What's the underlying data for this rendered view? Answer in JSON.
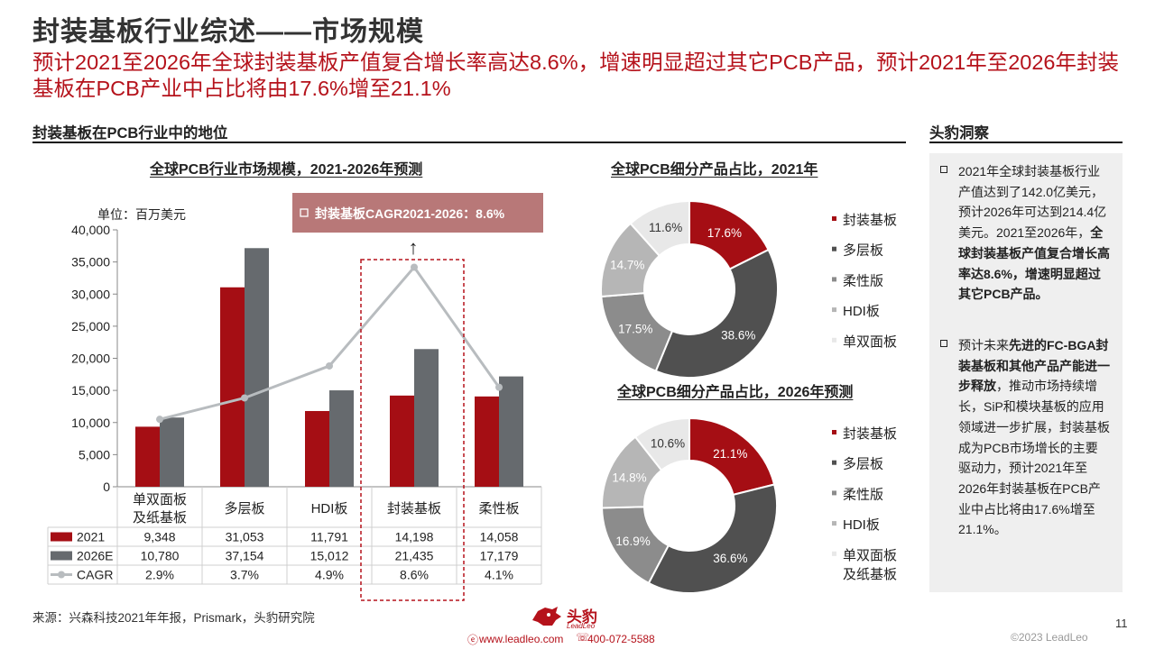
{
  "page": {
    "title": "封装基板行业综述——市场规模",
    "subtitle": "预计2021至2026年全球封装基板产值复合增长率高达8.6%，增速明显超过其它PCB产品，预计2021年至2026年封装基板在PCB产业中占比将由17.6%增至21.1%",
    "left_section_title": "封装基板在PCB行业中的地位",
    "right_section_title": "头豹洞察",
    "source": "来源：兴森科技2021年年报，Prismark，头豹研究院",
    "page_number": "11",
    "copyright": "©2023 LeadLeo",
    "website": "www.leadleo.com",
    "phone": "400-072-5588",
    "logo_text": "头豹",
    "logo_subtext": "LeadLeo"
  },
  "colors": {
    "red": "#a50e14",
    "dark_gray": "#505050",
    "gray": "#666a6e",
    "mid_gray": "#8c8c8c",
    "light_gray": "#b6b6b6",
    "very_light_gray": "#e8e8e8",
    "cagr_line": "#b8bcbf",
    "annotation_bg": "#b87878",
    "dashed_box": "#b5121b"
  },
  "insights": {
    "p1_a": "2021年全球封装基板行业产值达到了142.0亿美元，预计2026年可达到214.4亿美元。2021至2026年，",
    "p1_b": "全球封装基板产值复合增长高率达8.6%，增速明显超过其它PCB产品。",
    "p2_a": "预计未来",
    "p2_b": "先进的FC-BGA封装基板和其他产品产能进一步释放",
    "p2_c": "，推动市场持续增长，SiP和模块基板的应用领域进一步扩展，封装基板成为PCB市场增长的主要驱动力，预计2021年至2026年封装基板在PCB产业中占比将由17.6%增至21.1%。"
  },
  "chart_data": [
    {
      "type": "bar",
      "title": "全球PCB行业市场规模，2021-2026年预测",
      "unit_label": "单位：百万美元",
      "categories": [
        "单双面板及纸基板",
        "多层板",
        "HDI板",
        "封装基板",
        "柔性板"
      ],
      "category_lines": [
        [
          "单双面板",
          "及纸基板"
        ],
        [
          "多层板"
        ],
        [
          "HDI板"
        ],
        [
          "封装基板"
        ],
        [
          "柔性板"
        ]
      ],
      "series": [
        {
          "name": "2021",
          "values": [
            9348,
            31053,
            11791,
            14198,
            14058
          ],
          "labels": [
            "9,348",
            "31,053",
            "11,791",
            "14,198",
            "14,058"
          ],
          "color": "#a50e14"
        },
        {
          "name": "2026E",
          "values": [
            10780,
            37154,
            15012,
            21435,
            17179
          ],
          "labels": [
            "10,780",
            "37,154",
            "15,012",
            "21,435",
            "17,179"
          ],
          "color": "#666a6e"
        },
        {
          "name": "CAGR",
          "values": [
            2.9,
            3.7,
            4.9,
            8.6,
            4.1
          ],
          "labels": [
            "2.9%",
            "3.7%",
            "4.9%",
            "8.6%",
            "4.1%"
          ],
          "color": "#b8bcbf",
          "kind": "line"
        }
      ],
      "ylim": [
        0,
        40000
      ],
      "yticks": [
        0,
        5000,
        10000,
        15000,
        20000,
        25000,
        30000,
        35000,
        40000
      ],
      "ytick_labels": [
        "0",
        "5,000",
        "10,000",
        "15,000",
        "20,000",
        "25,000",
        "30,000",
        "35,000",
        "40,000"
      ],
      "annotation": "封装基板CAGR2021-2026：8.6%",
      "annotation_arrow": "↑",
      "highlight_category": "封装基板"
    },
    {
      "type": "pie",
      "title": "全球PCB细分产品占比，2021年",
      "slices": [
        {
          "label": "封装基板",
          "value": 17.6,
          "text": "17.6%",
          "color": "#a50e14"
        },
        {
          "label": "多层板",
          "value": 38.6,
          "text": "38.6%",
          "color": "#505050"
        },
        {
          "label": "柔性版",
          "value": 17.5,
          "text": "17.5%",
          "color": "#8c8c8c"
        },
        {
          "label": "HDI板",
          "value": 14.7,
          "text": "14.7%",
          "color": "#b6b6b6"
        },
        {
          "label": "单双面板",
          "value": 11.6,
          "text": "11.6%",
          "color": "#e8e8e8"
        }
      ]
    },
    {
      "type": "pie",
      "title": "全球PCB细分产品占比，2026年预测",
      "slices": [
        {
          "label": "封装基板",
          "value": 21.1,
          "text": "21.1%",
          "color": "#a50e14"
        },
        {
          "label": "多层板",
          "value": 36.6,
          "text": "36.6%",
          "color": "#505050"
        },
        {
          "label": "柔性版",
          "value": 16.9,
          "text": "16.9%",
          "color": "#8c8c8c"
        },
        {
          "label": "HDI板",
          "value": 14.8,
          "text": "14.8%",
          "color": "#b6b6b6"
        },
        {
          "label": "单双面板及纸基板",
          "lines": [
            "单双面板",
            "及纸基板"
          ],
          "value": 10.6,
          "text": "10.6%",
          "color": "#e8e8e8"
        }
      ]
    }
  ]
}
